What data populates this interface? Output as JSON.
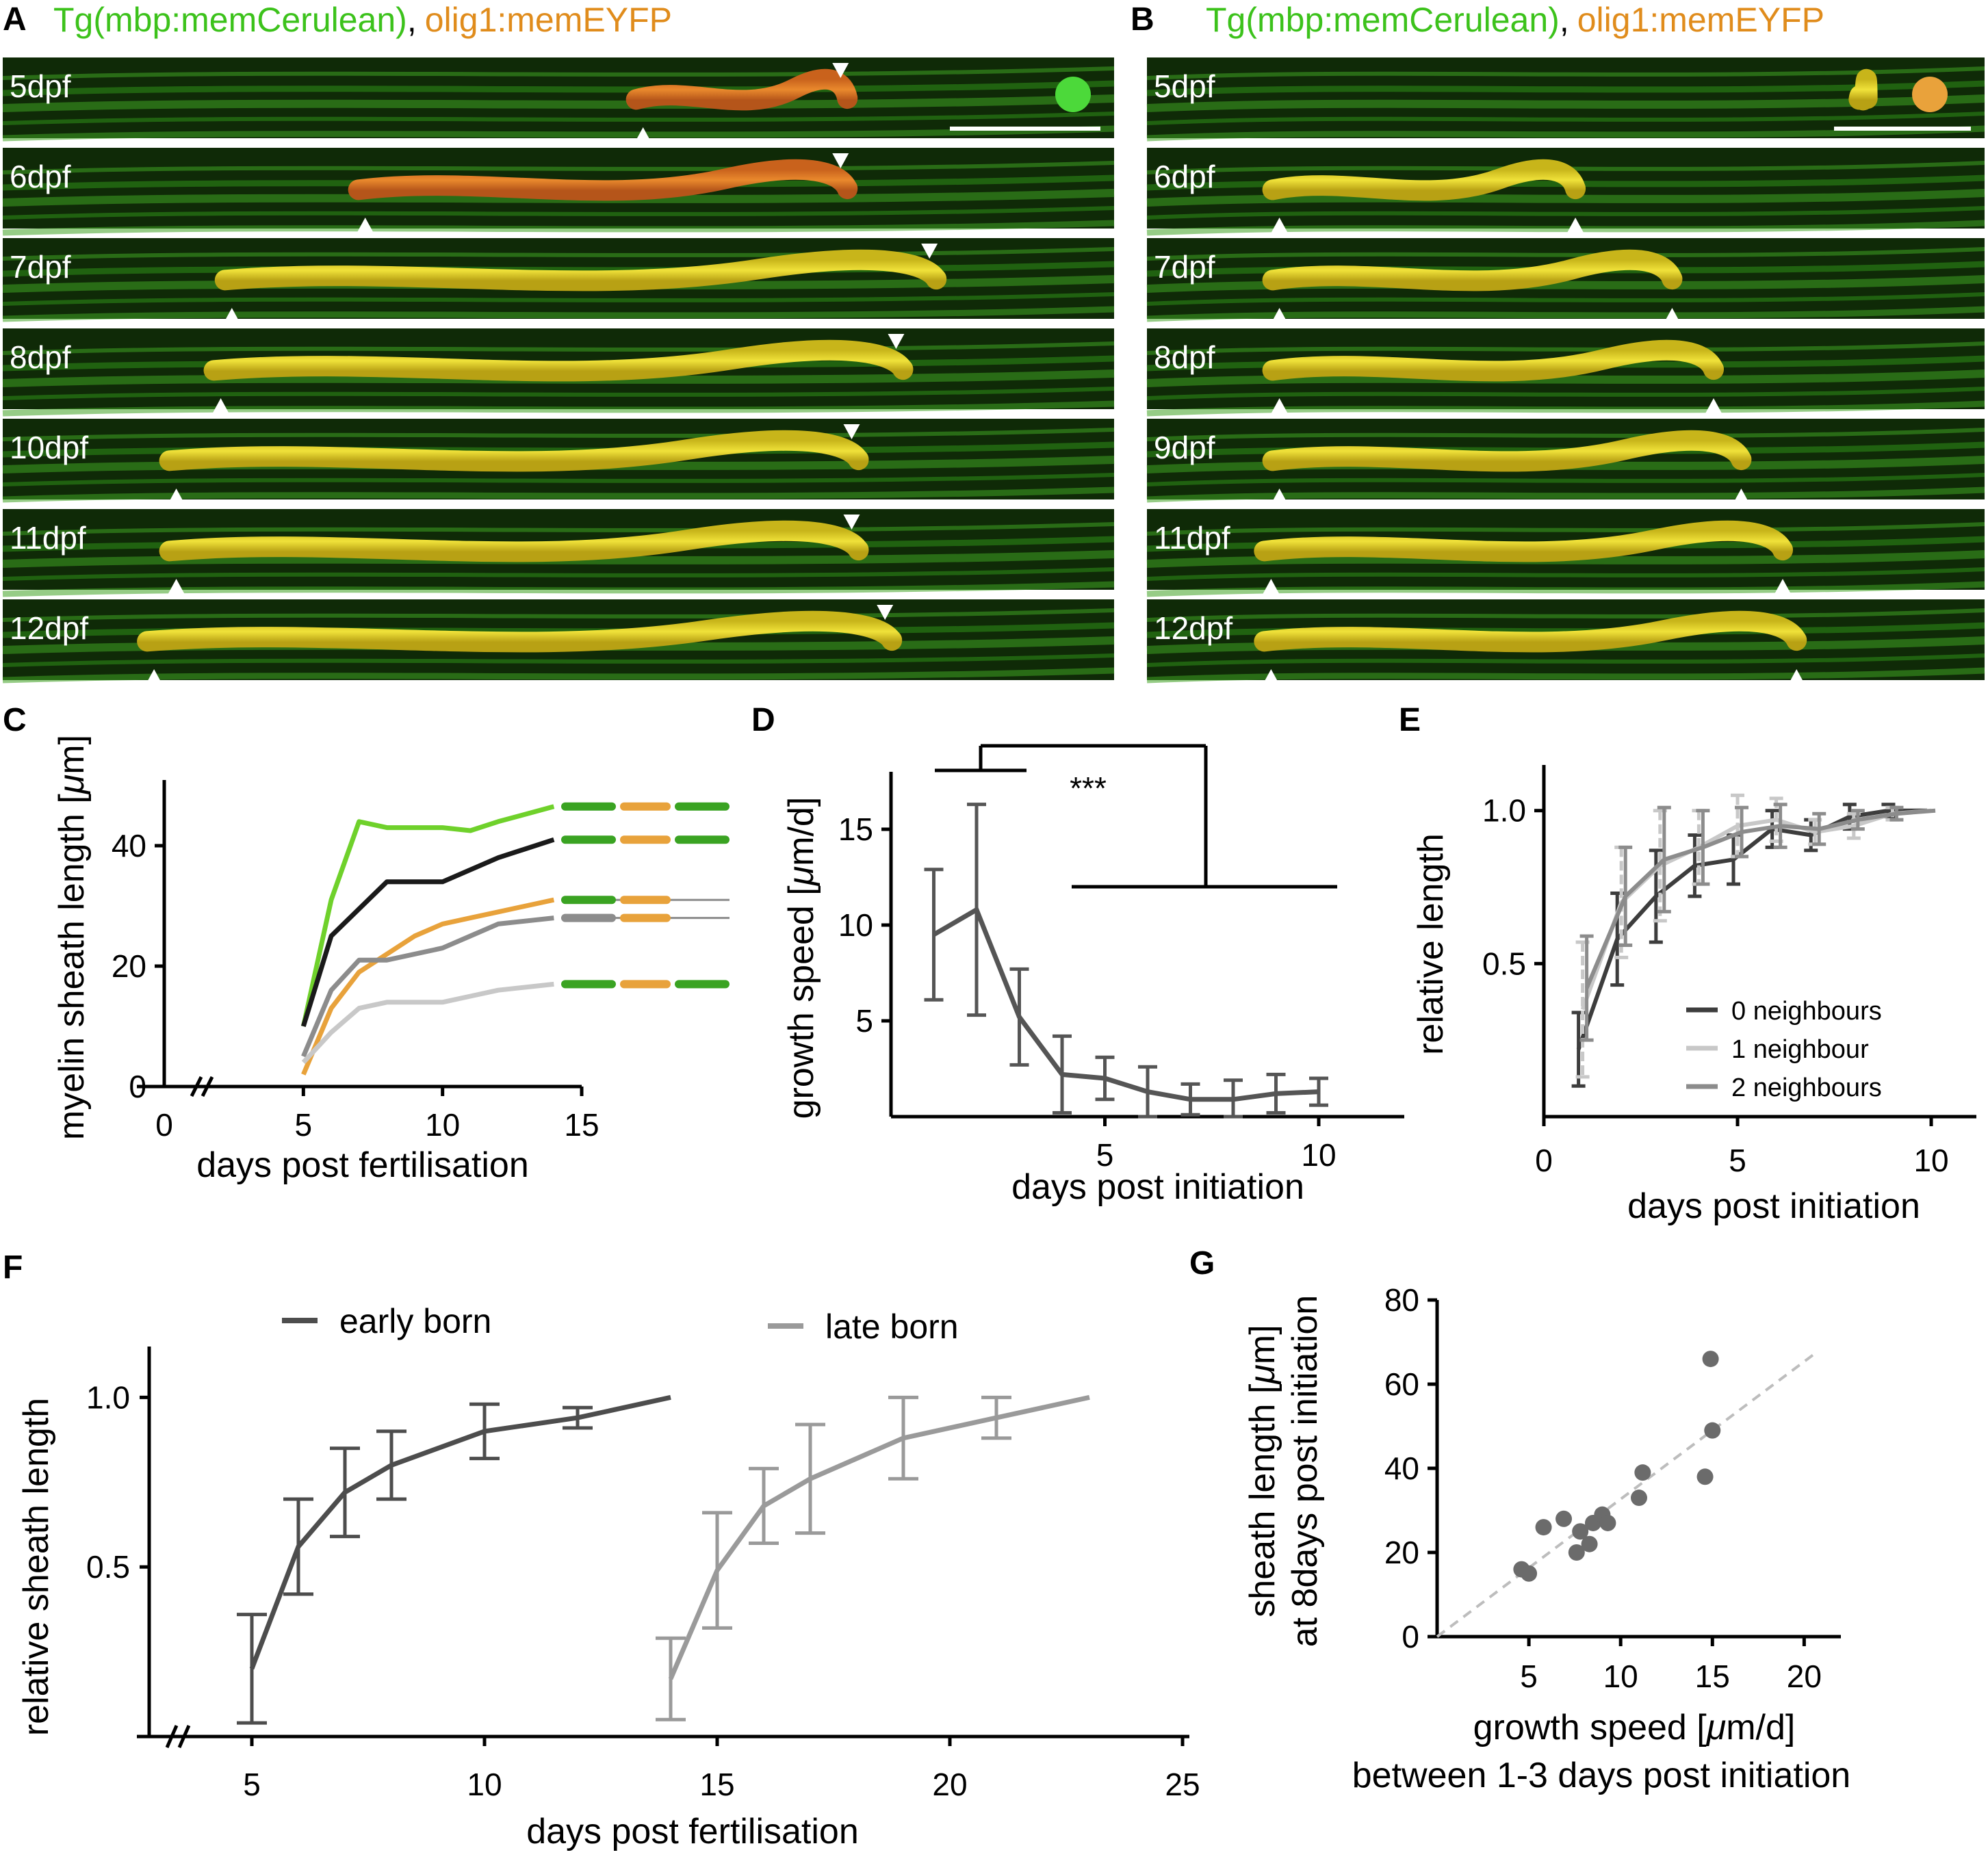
{
  "panel_A": {
    "letter": "A",
    "title_green": "Tg(mbp:memCerulean)",
    "title_sep": ",",
    "title_orange": "olig1:memEYFP",
    "rows": [
      "5dpf",
      "6dpf",
      "7dpf",
      "8dpf",
      "10dpf",
      "11dpf",
      "12dpf"
    ],
    "dot_color": "#4cd93a"
  },
  "panel_B": {
    "letter": "B",
    "title_green": "Tg(mbp:memCerulean)",
    "title_sep": ",",
    "title_orange": "olig1:memEYFP",
    "rows": [
      "5dpf",
      "6dpf",
      "7dpf",
      "8dpf",
      "9dpf",
      "11dpf",
      "12dpf"
    ],
    "dot_color": "#e9a23b"
  },
  "colors": {
    "green_text": "#3cc21b",
    "orange_text": "#e08c1c",
    "dark_gray": "#4d4d4d",
    "mid_gray": "#8c8c8c",
    "light_gray": "#c8c8c8",
    "bright_green": "#6fd12b",
    "orange": "#e8a23b"
  },
  "chart_data": [
    {
      "panel": "C",
      "type": "line",
      "ylabel_pre": "myelin sheath length [",
      "ylabel_mu": "μ",
      "ylabel_post": "m]",
      "xlabel": "days post fertilisation",
      "xlim": [
        0,
        15
      ],
      "ylim": [
        0,
        50
      ],
      "xticks": [
        "0",
        "5",
        "10",
        "15"
      ],
      "yticks": [
        "0",
        "20",
        "40"
      ],
      "series": [
        {
          "color": "#6fd12b",
          "x": [
            5,
            6,
            7,
            8,
            9,
            10,
            11,
            12,
            14
          ],
          "y": [
            10,
            31,
            44,
            43,
            43,
            43,
            42.5,
            44,
            46.5
          ]
        },
        {
          "color": "#1a1a1a",
          "x": [
            5,
            6,
            8,
            10,
            11,
            12,
            14
          ],
          "y": [
            10,
            25,
            34,
            34,
            36,
            38,
            41
          ]
        },
        {
          "color": "#e8a23b",
          "x": [
            5,
            6,
            7,
            8,
            9,
            10,
            11,
            12,
            14
          ],
          "y": [
            2,
            13,
            19,
            22,
            25,
            27,
            28,
            29,
            31
          ]
        },
        {
          "color": "#8c8c8c",
          "x": [
            5,
            6,
            7,
            8,
            10,
            11,
            12,
            14
          ],
          "y": [
            5,
            16,
            21,
            21,
            23,
            25,
            27,
            28
          ]
        },
        {
          "color": "#c8c8c8",
          "x": [
            5,
            6,
            7,
            8,
            10,
            11,
            12,
            14
          ],
          "y": [
            4,
            9,
            13,
            14,
            14,
            15,
            16,
            17
          ]
        }
      ]
    },
    {
      "panel": "D",
      "type": "line",
      "ylabel_pre": "growth speed [",
      "ylabel_mu": "μ",
      "ylabel_post": "m/d]",
      "xlabel": "days post initiation",
      "xlim": [
        0,
        12
      ],
      "ylim": [
        0,
        18
      ],
      "xticks": [
        "5",
        "10"
      ],
      "yticks": [
        "5",
        "10",
        "15"
      ],
      "significance": "***",
      "series": [
        {
          "color": "#555555",
          "x": [
            1,
            2,
            3,
            4,
            5,
            6,
            7,
            8,
            9,
            10
          ],
          "y": [
            9.5,
            10.8,
            5.2,
            2.2,
            2.0,
            1.3,
            0.9,
            0.9,
            1.2,
            1.3
          ],
          "err": [
            3.4,
            5.5,
            2.5,
            2.0,
            1.1,
            1.3,
            0.8,
            1.0,
            1.0,
            0.7
          ]
        }
      ]
    },
    {
      "panel": "E",
      "type": "line",
      "ylabel": "relative length",
      "xlabel": "days post initiation",
      "xlim": [
        0,
        10.6
      ],
      "ylim": [
        0,
        1.1
      ],
      "xticks": [
        "0",
        "5",
        "10"
      ],
      "yticks": [
        "0.5",
        "1.0"
      ],
      "series": [
        {
          "name": "0 neighbours",
          "color": "#3d3d3d",
          "x": [
            1,
            2,
            3,
            4,
            5,
            6,
            7,
            8,
            9,
            10
          ],
          "y": [
            0.22,
            0.58,
            0.72,
            0.82,
            0.84,
            0.94,
            0.92,
            0.98,
            1.0,
            1.0
          ],
          "err": [
            0.12,
            0.15,
            0.15,
            0.1,
            0.08,
            0.06,
            0.05,
            0.04,
            0.02,
            0
          ]
        },
        {
          "name": "1 neighbour",
          "color": "#c8c8c8",
          "x": [
            1,
            2,
            3,
            4,
            5,
            6,
            7,
            8,
            9,
            10
          ],
          "y": [
            0.35,
            0.7,
            0.82,
            0.88,
            0.95,
            0.97,
            0.93,
            0.95,
            0.99,
            1.0
          ],
          "err": [
            0.22,
            0.18,
            0.18,
            0.12,
            0.1,
            0.07,
            0.04,
            0.04,
            0.02,
            0
          ]
        },
        {
          "name": "2 neighbours",
          "color": "#8c8c8c",
          "x": [
            1,
            2,
            3,
            4,
            5,
            6,
            7,
            8,
            9,
            10
          ],
          "y": [
            0.42,
            0.72,
            0.84,
            0.88,
            0.93,
            0.95,
            0.94,
            0.97,
            0.99,
            1.0
          ],
          "err": [
            0.17,
            0.16,
            0.17,
            0.12,
            0.08,
            0.07,
            0.05,
            0.03,
            0.02,
            0
          ]
        }
      ]
    },
    {
      "panel": "F",
      "type": "line",
      "ylabel": "relative sheath length",
      "xlabel": "days post fertilisation",
      "xlim": [
        3.5,
        25
      ],
      "ylim": [
        0,
        1.15
      ],
      "xticks": [
        "5",
        "10",
        "15",
        "20",
        "25"
      ],
      "yticks": [
        "0.5",
        "1.0"
      ],
      "series": [
        {
          "name": "early born",
          "color": "#4d4d4d",
          "x": [
            5,
            6,
            7,
            8,
            10,
            12,
            14
          ],
          "y": [
            0.2,
            0.56,
            0.72,
            0.8,
            0.9,
            0.94,
            1.0
          ],
          "err": [
            0.16,
            0.14,
            0.13,
            0.1,
            0.08,
            0.03,
            0
          ]
        },
        {
          "name": "late born",
          "color": "#9a9a9a",
          "x": [
            14,
            15,
            16,
            17,
            19,
            21,
            23
          ],
          "y": [
            0.17,
            0.49,
            0.68,
            0.76,
            0.88,
            0.94,
            1.0
          ],
          "err": [
            0.12,
            0.17,
            0.11,
            0.16,
            0.12,
            0.06,
            0
          ]
        }
      ]
    },
    {
      "panel": "G",
      "type": "scatter",
      "ylabel_1_pre": "sheath length [",
      "ylabel_1_mu": "μ",
      "ylabel_1_post": "m]",
      "ylabel_2": "at 8days post initiation",
      "xlabel_1_pre": "growth speed [",
      "xlabel_1_mu": "μ",
      "xlabel_1_post": "m/d]",
      "xlabel_2": "between 1-3 days post initiation",
      "xlim": [
        0,
        22
      ],
      "ylim": [
        0,
        80
      ],
      "xticks": [
        "5",
        "10",
        "15",
        "20"
      ],
      "yticks": [
        "0",
        "20",
        "40",
        "60",
        "80"
      ],
      "points": [
        [
          4.6,
          16
        ],
        [
          5,
          15
        ],
        [
          5.8,
          26
        ],
        [
          6.9,
          28
        ],
        [
          7.6,
          20
        ],
        [
          7.8,
          25
        ],
        [
          8.3,
          22
        ],
        [
          8.5,
          27
        ],
        [
          9,
          29
        ],
        [
          9.3,
          27
        ],
        [
          11,
          33
        ],
        [
          11.2,
          39
        ],
        [
          14.6,
          38
        ],
        [
          14.9,
          66
        ],
        [
          15,
          49
        ]
      ],
      "fit_line": [
        [
          0,
          0
        ],
        [
          20.5,
          67
        ]
      ]
    }
  ]
}
